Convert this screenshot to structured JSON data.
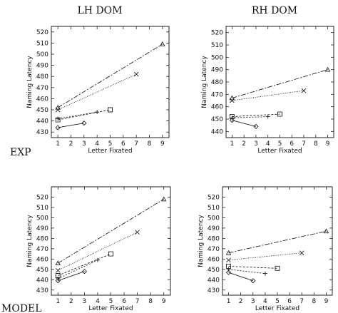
{
  "header": {
    "left": "LH DOM",
    "right": "RH DOM"
  },
  "row_labels": {
    "top": "EXP",
    "bottom": "MODEL"
  },
  "chart_data": [
    {
      "type": "line",
      "xlabel": "Letter Fixated",
      "ylabel": "Naming Latency",
      "xlim": [
        0.5,
        9.5
      ],
      "xticks": [
        1,
        2,
        3,
        4,
        5,
        6,
        7,
        8,
        9
      ],
      "ylim": [
        425,
        525
      ],
      "yticks": [
        430,
        440,
        450,
        460,
        470,
        480,
        490,
        500,
        510,
        520
      ],
      "grid": false,
      "series": [
        {
          "marker": "triangle",
          "dash": "7,2,2,2",
          "x": [
            1,
            9
          ],
          "y": [
            452,
            509
          ]
        },
        {
          "marker": "x",
          "dash": "1,1.5",
          "x": [
            1,
            7
          ],
          "y": [
            450,
            482
          ]
        },
        {
          "marker": "plus",
          "dash": "2,2",
          "x": [
            1,
            4
          ],
          "y": [
            442,
            448
          ]
        },
        {
          "marker": "square",
          "dash": "3,2",
          "x": [
            1,
            5
          ],
          "y": [
            441,
            450
          ]
        },
        {
          "marker": "diamond",
          "dash": "",
          "x": [
            1,
            3
          ],
          "y": [
            434,
            438
          ]
        }
      ]
    },
    {
      "type": "line",
      "xlabel": "Letter Fixated",
      "ylabel": "Naming Latency",
      "xlim": [
        0.5,
        9.5
      ],
      "xticks": [
        1,
        2,
        3,
        4,
        5,
        6,
        7,
        8,
        9
      ],
      "ylim": [
        435,
        525
      ],
      "yticks": [
        440,
        450,
        460,
        470,
        480,
        490,
        500,
        510,
        520
      ],
      "grid": false,
      "series": [
        {
          "marker": "triangle",
          "dash": "7,2,2,2",
          "x": [
            1,
            9
          ],
          "y": [
            467,
            490
          ]
        },
        {
          "marker": "x",
          "dash": "1,1.5",
          "x": [
            1,
            7
          ],
          "y": [
            465,
            473
          ]
        },
        {
          "marker": "plus",
          "dash": "2,2",
          "x": [
            1,
            4
          ],
          "y": [
            451,
            452
          ]
        },
        {
          "marker": "square",
          "dash": "3,2",
          "x": [
            1,
            5
          ],
          "y": [
            452,
            454
          ]
        },
        {
          "marker": "diamond",
          "dash": "",
          "x": [
            1,
            3
          ],
          "y": [
            449,
            444
          ]
        }
      ]
    },
    {
      "type": "line",
      "xlabel": "Letter Fixated",
      "ylabel": "Naming Latency",
      "xlim": [
        0.5,
        9.5
      ],
      "xticks": [
        1,
        2,
        3,
        4,
        5,
        6,
        7,
        8,
        9
      ],
      "ylim": [
        425,
        530
      ],
      "yticks": [
        430,
        440,
        450,
        460,
        470,
        480,
        490,
        500,
        510,
        520
      ],
      "grid": false,
      "series": [
        {
          "marker": "triangle",
          "dash": "7,2,2,2",
          "x": [
            1,
            9
          ],
          "y": [
            456,
            518
          ]
        },
        {
          "marker": "x",
          "dash": "1,1.5",
          "x": [
            1,
            7
          ],
          "y": [
            449,
            486
          ]
        },
        {
          "marker": "plus",
          "dash": "2,2",
          "x": [
            1,
            4
          ],
          "y": [
            441,
            459
          ]
        },
        {
          "marker": "square",
          "dash": "3,2",
          "x": [
            1,
            5
          ],
          "y": [
            444,
            465
          ]
        },
        {
          "marker": "diamond",
          "dash": "",
          "x": [
            1,
            3
          ],
          "y": [
            439,
            448
          ]
        }
      ]
    },
    {
      "type": "line",
      "xlabel": "Letter Fixated",
      "ylabel": "Naming Latency",
      "xlim": [
        0.5,
        9.5
      ],
      "xticks": [
        1,
        2,
        3,
        4,
        5,
        6,
        7,
        8,
        9
      ],
      "ylim": [
        425,
        530
      ],
      "yticks": [
        430,
        440,
        450,
        460,
        470,
        480,
        490,
        500,
        510,
        520
      ],
      "grid": false,
      "series": [
        {
          "marker": "triangle",
          "dash": "7,2,2,2",
          "x": [
            1,
            9
          ],
          "y": [
            466,
            487
          ]
        },
        {
          "marker": "x",
          "dash": "1,1.5",
          "x": [
            1,
            7
          ],
          "y": [
            459,
            466
          ]
        },
        {
          "marker": "plus",
          "dash": "2,2",
          "x": [
            1,
            4
          ],
          "y": [
            450,
            446
          ]
        },
        {
          "marker": "square",
          "dash": "3,2",
          "x": [
            1,
            5
          ],
          "y": [
            453,
            451
          ]
        },
        {
          "marker": "diamond",
          "dash": "",
          "x": [
            1,
            3
          ],
          "y": [
            447,
            439
          ]
        }
      ]
    }
  ]
}
